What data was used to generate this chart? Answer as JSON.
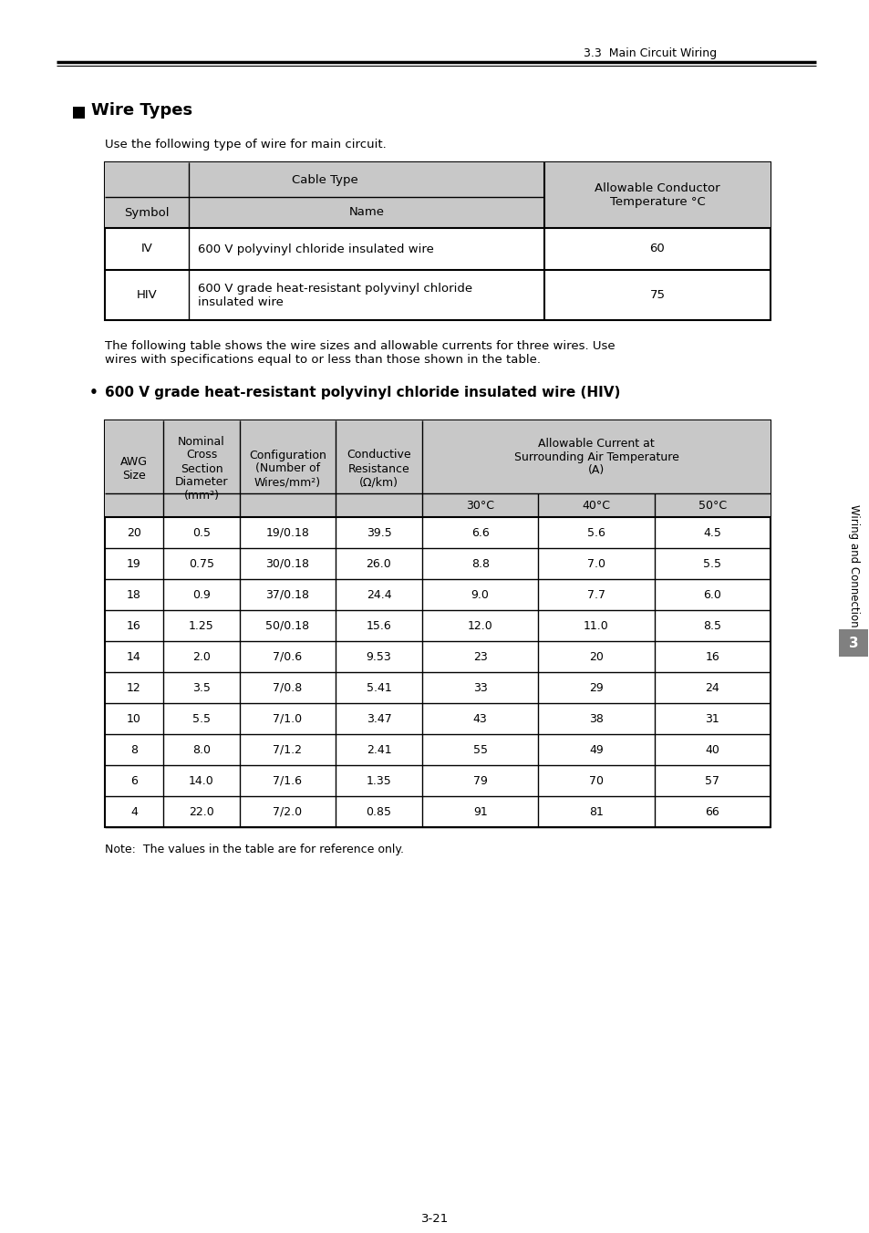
{
  "page_header": "3.3  Main Circuit Wiring",
  "section_title": "Wire Types",
  "intro_text": "Use the following type of wire for main circuit.",
  "table1_data": [
    [
      "IV",
      "600 V polyvinyl chloride insulated wire",
      "60"
    ],
    [
      "HIV",
      "600 V grade heat-resistant polyvinyl chloride\ninsulated wire",
      "75"
    ]
  ],
  "para_text": "The following table shows the wire sizes and allowable currents for three wires. Use\nwires with specifications equal to or less than those shown in the table.",
  "bullet_text": "600 V grade heat-resistant polyvinyl chloride insulated wire (HIV)",
  "table2_data": [
    [
      "20",
      "0.5",
      "19/0.18",
      "39.5",
      "6.6",
      "5.6",
      "4.5"
    ],
    [
      "19",
      "0.75",
      "30/0.18",
      "26.0",
      "8.8",
      "7.0",
      "5.5"
    ],
    [
      "18",
      "0.9",
      "37/0.18",
      "24.4",
      "9.0",
      "7.7",
      "6.0"
    ],
    [
      "16",
      "1.25",
      "50/0.18",
      "15.6",
      "12.0",
      "11.0",
      "8.5"
    ],
    [
      "14",
      "2.0",
      "7/0.6",
      "9.53",
      "23",
      "20",
      "16"
    ],
    [
      "12",
      "3.5",
      "7/0.8",
      "5.41",
      "33",
      "29",
      "24"
    ],
    [
      "10",
      "5.5",
      "7/1.0",
      "3.47",
      "43",
      "38",
      "31"
    ],
    [
      "8",
      "8.0",
      "7/1.2",
      "2.41",
      "55",
      "49",
      "40"
    ],
    [
      "6",
      "14.0",
      "7/1.6",
      "1.35",
      "79",
      "70",
      "57"
    ],
    [
      "4",
      "22.0",
      "7/2.0",
      "0.85",
      "91",
      "81",
      "66"
    ]
  ],
  "note_text": "Note:  The values in the table are for reference only.",
  "sidebar_text": "Wiring and Connection",
  "sidebar_number": "3",
  "page_number": "3-21",
  "header_bg": "#c8c8c8",
  "sidebar_bg": "#808080",
  "body_bg": "#ffffff"
}
